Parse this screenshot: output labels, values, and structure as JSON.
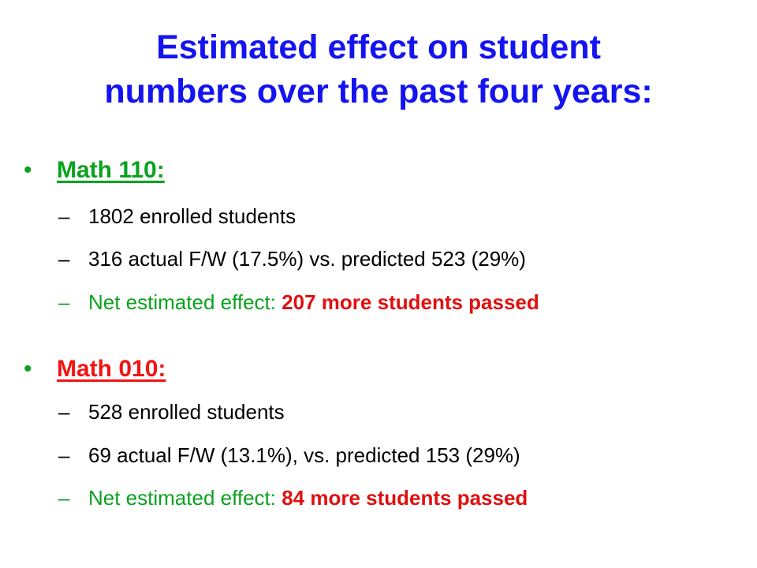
{
  "title": {
    "line1": "Estimated effect on student",
    "line2": "numbers over the past four years:"
  },
  "colors": {
    "title": "#1414f0",
    "green": "#0aa21e",
    "red": "#f21414"
  },
  "sections": [
    {
      "bullet": "•",
      "heading": "Math 110:",
      "items": [
        "1802 enrolled students",
        "316 actual F/W (17.5%) vs. predicted 523 (29%)"
      ],
      "net_prefix": "Net estimated effect: ",
      "net_value": "207 more students passed"
    },
    {
      "bullet": "•",
      "heading": "Math 010:",
      "items": [
        "528 enrolled students",
        "69 actual F/W (13.1%), vs. predicted 153 (29%)"
      ],
      "net_prefix": "Net estimated effect: ",
      "net_value": "84 more students passed"
    }
  ],
  "dash": "–"
}
